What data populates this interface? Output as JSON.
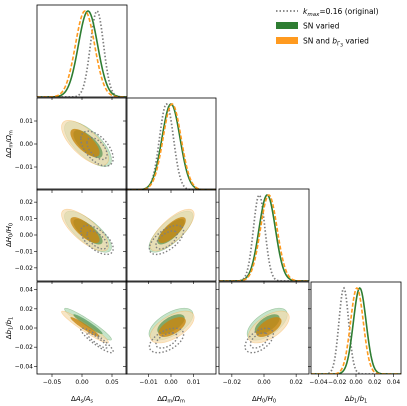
{
  "colors": {
    "original": "#7f7f7f",
    "sn": "#2e7d32",
    "sn_light": "#a8d5ae",
    "snb": "#ff9a1f",
    "snb_light": "#f4dcae",
    "snb_dark": "#c8860f"
  },
  "legend": {
    "original": "$k_{max}$=0.16 (original)",
    "sn": "SN varied",
    "snb": "SN and $b_{\\Gamma_3}$ varied",
    "original_k": "k",
    "original_k_sub": "max",
    "original_rest": "=0.16 (original)",
    "snb_prefix": "SN and ",
    "snb_b": "b",
    "snb_sub": "Γ",
    "snb_subsub": "3",
    "snb_suffix": " varied"
  },
  "chart_data": {
    "type": "corner",
    "parameters": [
      "ΔA_s/A_s",
      "ΔΩ_m/Ω_m",
      "ΔH_0/H_0",
      "Δb_1/b_1"
    ],
    "axis_labels_x": [
      "ΔA_s/A_s",
      "ΔΩ_m/Ω_m",
      "ΔH_0/H_0",
      "Δb_1/b_1"
    ],
    "axis_labels_y": [
      "ΔΩ_m/Ω_m",
      "ΔH_0/H_0",
      "Δb_1/b_1"
    ],
    "ranges": [
      [
        -0.075,
        0.075
      ],
      [
        -0.02,
        0.02
      ],
      [
        -0.028,
        0.028
      ],
      [
        -0.048,
        0.048
      ]
    ],
    "x_ticks": {
      "values": [
        [
          -0.05,
          0.0,
          0.05
        ],
        [
          -0.01,
          0.0,
          0.01
        ],
        [
          -0.02,
          0.0,
          0.02
        ],
        [
          -0.04,
          -0.02,
          0.0,
          0.02,
          0.04
        ]
      ],
      "labels": [
        [
          "−0.05",
          "0.00",
          "0.05"
        ],
        [
          "−0.01",
          "0.00",
          "0.01"
        ],
        [
          "−0.02",
          "0.00",
          "0.02"
        ],
        [
          "−0.04",
          "−0.02",
          "0.00",
          "0.02",
          "0.04"
        ]
      ]
    },
    "y_ticks": {
      "values": [
        [],
        [
          0.01,
          0.0,
          -0.01
        ],
        [
          0.02,
          0.01,
          0.0,
          -0.01,
          -0.02
        ],
        [
          0.04,
          0.02,
          0.0,
          -0.02,
          -0.04
        ]
      ],
      "labels": [
        [],
        [
          "0.01",
          "0.00",
          "−0.01"
        ],
        [
          "0.02",
          "0.01",
          "0.00",
          "−0.01",
          "−0.02"
        ],
        [
          "0.04",
          "0.02",
          "0.00",
          "−0.02",
          "−0.04"
        ]
      ]
    },
    "series": [
      {
        "name": "k_max=0.16 (original)",
        "style": "dotted",
        "means": [
          0.025,
          -0.002,
          -0.003,
          -0.013
        ],
        "sigmas": [
          0.011,
          0.0031,
          0.0036,
          0.0052
        ]
      },
      {
        "name": "SN varied",
        "style": "solid",
        "means": [
          0.01,
          0.0,
          0.002,
          0.004
        ],
        "sigmas": [
          0.016,
          0.004,
          0.0051,
          0.0068
        ]
      },
      {
        "name": "SN and b_Γ3 varied",
        "style": "dashed",
        "means": [
          0.005,
          0.0005,
          0.003,
          0.001
        ],
        "sigmas": [
          0.016,
          0.004,
          0.0052,
          0.0068
        ]
      }
    ],
    "correlations": [
      {
        "pair": [
          1,
          0
        ],
        "rho": [
          -0.55,
          -0.7,
          -0.7
        ]
      },
      {
        "pair": [
          2,
          0
        ],
        "rho": [
          -0.6,
          -0.75,
          -0.75
        ]
      },
      {
        "pair": [
          2,
          1
        ],
        "rho": [
          0.6,
          0.75,
          0.75
        ]
      },
      {
        "pair": [
          3,
          0
        ],
        "rho": [
          -0.9,
          -0.95,
          -0.95
        ]
      },
      {
        "pair": [
          3,
          1
        ],
        "rho": [
          0.5,
          0.6,
          0.6
        ]
      },
      {
        "pair": [
          3,
          2
        ],
        "rho": [
          0.5,
          0.6,
          0.6
        ]
      }
    ]
  }
}
